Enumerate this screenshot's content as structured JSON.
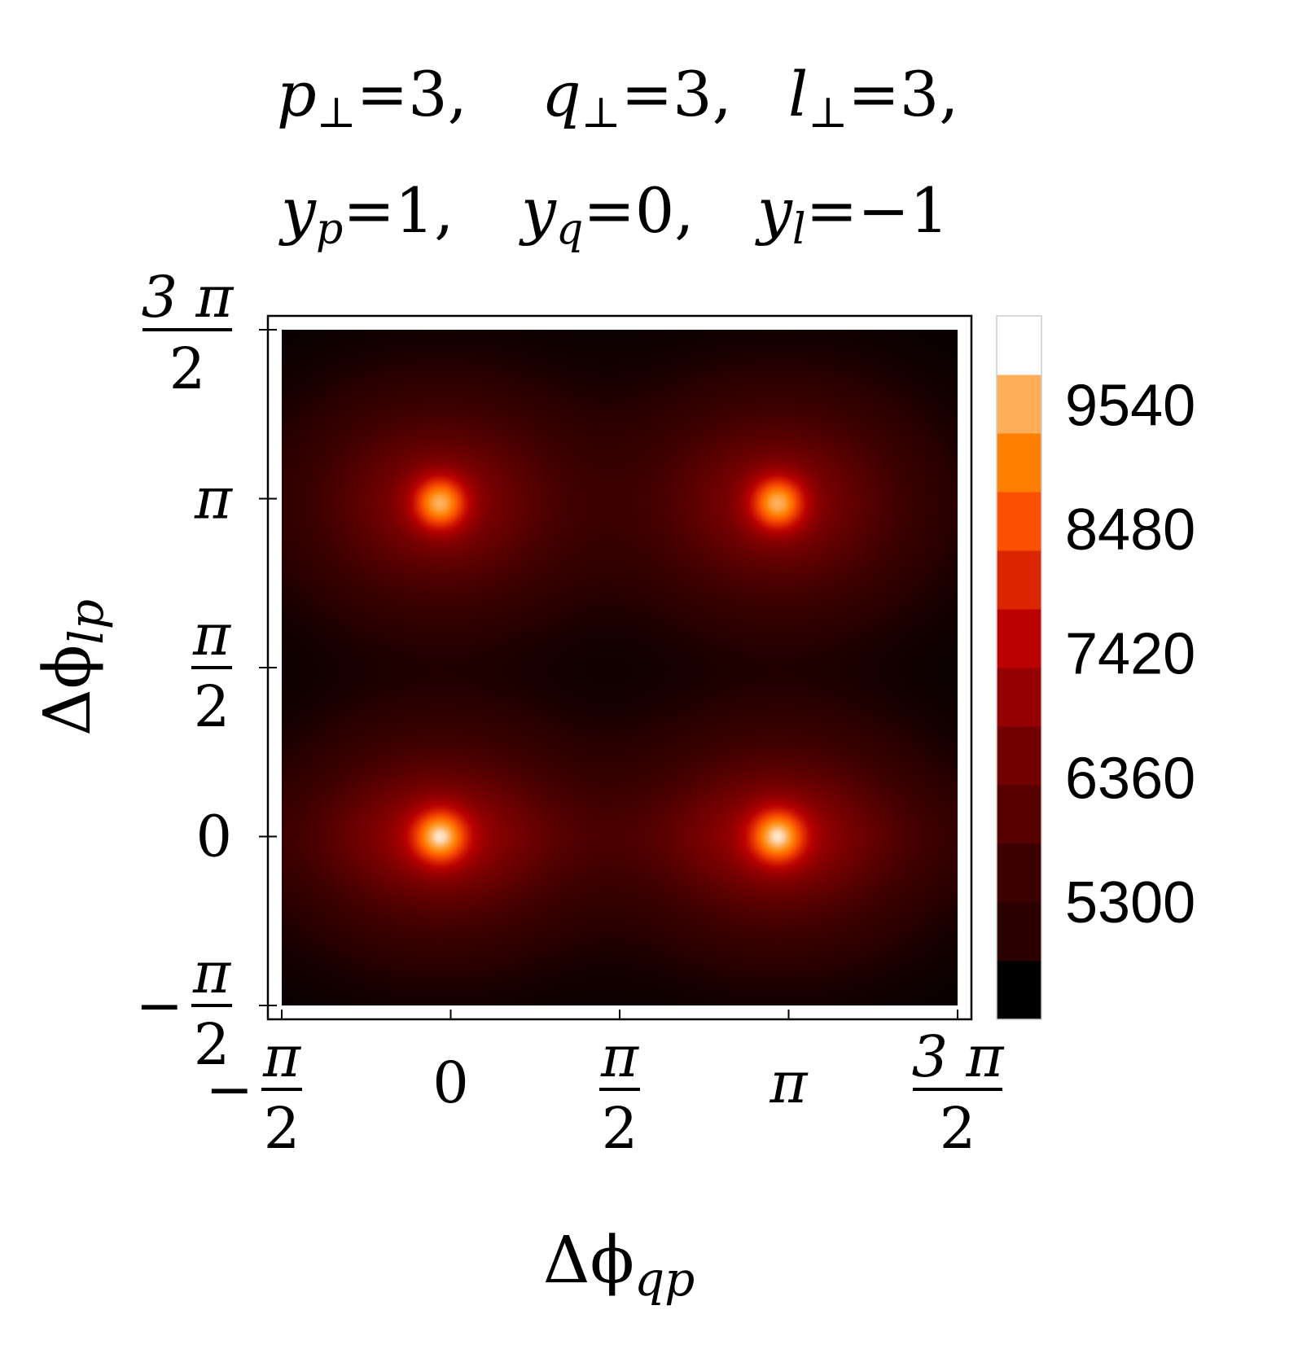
{
  "chart_data": {
    "type": "heatmap",
    "title_lines": [
      [
        {
          "sym": "p",
          "sub": "⊥",
          "eq": "=3,"
        },
        {
          "sym": "q",
          "sub": "⊥",
          "eq": "=3,"
        },
        {
          "sym": "l",
          "sub": "⊥",
          "eq": "=3,"
        }
      ],
      [
        {
          "sym": "y",
          "sub": "p",
          "eq": "=1,"
        },
        {
          "sym": "y",
          "sub": "q",
          "eq": "=0,"
        },
        {
          "sym": "y",
          "sub": "l",
          "eq": "=−1"
        }
      ]
    ],
    "xlabel": {
      "main": "Δϕ",
      "sub": "qp"
    },
    "ylabel": {
      "main": "Δϕ",
      "sub": "lp"
    },
    "xlim": [
      -1.5708,
      4.7124
    ],
    "ylim": [
      -1.5708,
      4.7124
    ],
    "ticks": [
      {
        "value": -1.5708,
        "sign": "−",
        "num": "π",
        "den": "2"
      },
      {
        "value": 0,
        "text": "0"
      },
      {
        "value": 1.5708,
        "num": "π",
        "den": "2"
      },
      {
        "value": 3.1416,
        "text": "π"
      },
      {
        "value": 4.7124,
        "num": "3 π",
        "den": "2"
      }
    ],
    "peaks": [
      {
        "x": -0.1,
        "y": 0.0,
        "value": 9800
      },
      {
        "x": 3.04,
        "y": 0.0,
        "value": 9800
      },
      {
        "x": -0.1,
        "y": 3.1,
        "value": 9800
      },
      {
        "x": 3.04,
        "y": 3.1,
        "value": 9800
      }
    ],
    "minimum_value": 4400,
    "colorbar": {
      "range": [
        4300,
        10300
      ],
      "tick_labels": [
        "5300",
        "6360",
        "7420",
        "8480",
        "9540"
      ],
      "tick_values": [
        5300,
        6360,
        7420,
        8480,
        9540
      ],
      "colors": [
        "#000000",
        "#2a0000",
        "#3d0000",
        "#560000",
        "#730000",
        "#950000",
        "#ba0000",
        "#db2600",
        "#fa5000",
        "#ff8000",
        "#ffad58",
        "#ffffff"
      ]
    }
  }
}
